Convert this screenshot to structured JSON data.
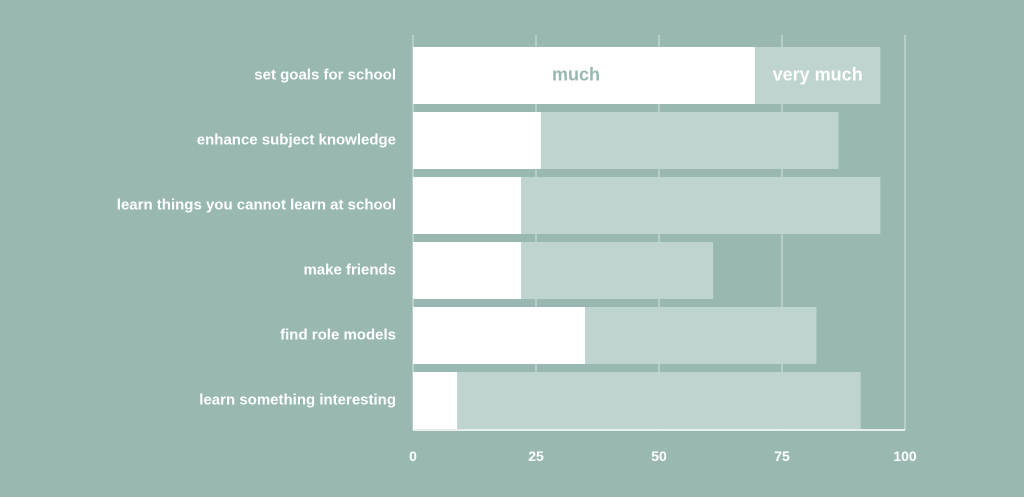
{
  "chart_data": {
    "type": "bar",
    "orientation": "horizontal",
    "stacked": true,
    "categories": [
      "set goals for school",
      "enhance subject knowledge",
      "learn things you cannot learn at school",
      "make friends",
      "find role models",
      "learn something interesting"
    ],
    "series": [
      {
        "name": "much",
        "values": [
          69.5,
          26,
          22,
          22,
          35,
          9
        ]
      },
      {
        "name": "very much",
        "values": [
          25.5,
          60.5,
          73,
          39,
          47,
          82
        ]
      }
    ],
    "xlim": [
      0,
      100
    ],
    "xticks": [
      "0",
      "25",
      "50",
      "75",
      "100"
    ],
    "grid": true,
    "legend": "inline on first bar",
    "colors": {
      "background": "#98b8b1",
      "much": "#ffffff",
      "very_much": "#bfd4cf",
      "grid": "#d3e2de",
      "text": "#ffffff",
      "much_label": "#98b8b1"
    }
  }
}
